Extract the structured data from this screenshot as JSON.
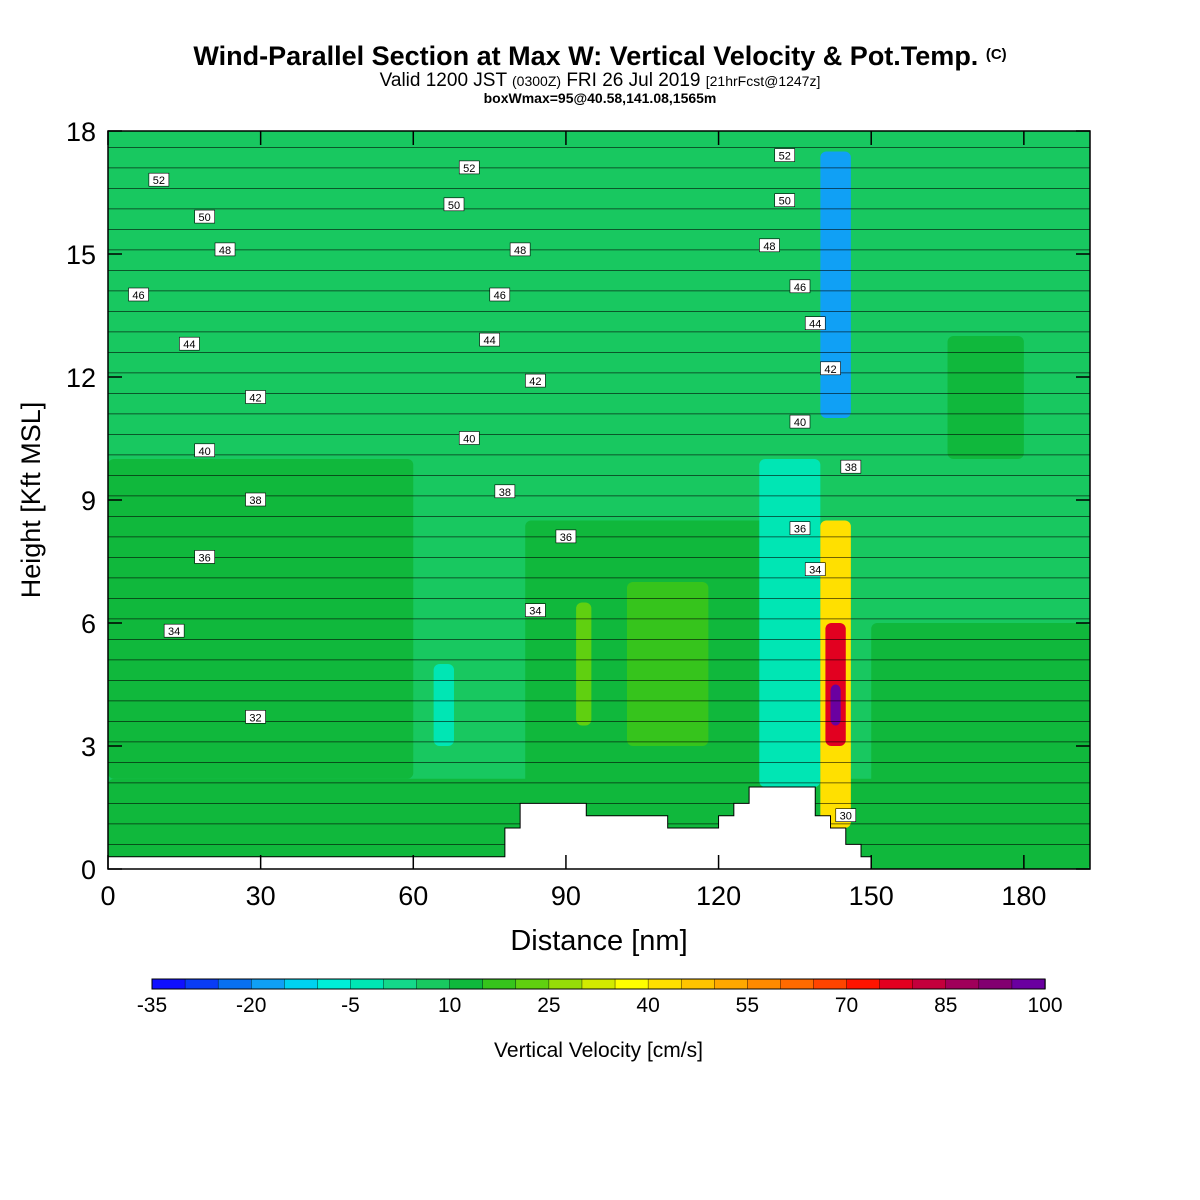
{
  "title": {
    "main": "Wind-Parallel Section at Max W: Vertical Velocity & Pot.Temp.",
    "main_mark": "(C)",
    "valid_prefix": "Valid 1200 JST",
    "valid_utc": "(0300Z)",
    "valid_date": "FRI 26 Jul 2019",
    "forecast": "[21hrFcst@1247z]",
    "box_info": "boxWmax=95@40.58,141.08,1565m"
  },
  "chart_data": {
    "type": "heatmap",
    "xlabel": "Distance [nm]",
    "ylabel": "Height [Kft MSL]",
    "xlim": [
      0,
      193
    ],
    "ylim": [
      0,
      18
    ],
    "x_ticks": [
      0,
      30,
      60,
      90,
      120,
      150,
      180
    ],
    "y_ticks": [
      0,
      3,
      6,
      9,
      12,
      15,
      18
    ],
    "colorbar": {
      "label": "Vertical Velocity [cm/s]",
      "tick_labels": [
        "-35",
        "-20",
        "-5",
        "10",
        "25",
        "40",
        "55",
        "70",
        "85",
        "100"
      ],
      "tick_values": [
        -35,
        -20,
        -5,
        10,
        25,
        40,
        55,
        70,
        85,
        100
      ],
      "min": -35,
      "max": 100,
      "step": 5,
      "colors": [
        "#1010ff",
        "#0a3cf5",
        "#0870f0",
        "#10a0f5",
        "#00d2f0",
        "#00eed8",
        "#00e6b4",
        "#14d88a",
        "#18c860",
        "#10b83c",
        "#36c41c",
        "#60d010",
        "#96dc08",
        "#d2ea00",
        "#ffff00",
        "#ffe000",
        "#ffc400",
        "#ffa800",
        "#ff8a00",
        "#ff6a00",
        "#ff4400",
        "#ff1400",
        "#e20020",
        "#c4003c",
        "#a0005a",
        "#820070",
        "#6a00a0"
      ]
    },
    "field_regions": [
      {
        "w": 12,
        "x0": 0,
        "x1": 193,
        "z0": 0,
        "z1": 2.2
      },
      {
        "w": 12,
        "x0": 0,
        "x1": 60,
        "z0": 2.2,
        "z1": 10
      },
      {
        "w": 12,
        "x0": 82,
        "x1": 135,
        "z0": 0.3,
        "z1": 8.5
      },
      {
        "w": 22,
        "x0": 92,
        "x1": 95,
        "z0": 3.5,
        "z1": 6.5
      },
      {
        "w": 18,
        "x0": 102,
        "x1": 118,
        "z0": 3,
        "z1": 7
      },
      {
        "w": 12,
        "x0": 150,
        "x1": 193,
        "z0": 0,
        "z1": 6
      },
      {
        "w": 12,
        "x0": 165,
        "x1": 180,
        "z0": 10,
        "z1": 13
      },
      {
        "w": -3,
        "x0": 128,
        "x1": 140,
        "z0": 2,
        "z1": 10
      },
      {
        "w": -2,
        "x0": 64,
        "x1": 68,
        "z0": 3,
        "z1": 5
      },
      {
        "w": -18,
        "x0": 140,
        "x1": 146,
        "z0": 11,
        "z1": 17.5
      },
      {
        "w": 40,
        "x0": 140,
        "x1": 146,
        "z0": 1,
        "z1": 8.5
      },
      {
        "w": 75,
        "x0": 141,
        "x1": 145,
        "z0": 3,
        "z1": 6
      },
      {
        "w": 95,
        "x0": 142,
        "x1": 144,
        "z0": 3.5,
        "z1": 4.5
      }
    ],
    "terrain": [
      [
        0,
        0.3
      ],
      [
        78,
        0.3
      ],
      [
        78,
        1.0
      ],
      [
        81,
        1.0
      ],
      [
        81,
        1.6
      ],
      [
        94,
        1.6
      ],
      [
        94,
        1.3
      ],
      [
        110,
        1.3
      ],
      [
        110,
        1.0
      ],
      [
        120,
        1.0
      ],
      [
        120,
        1.3
      ],
      [
        123,
        1.3
      ],
      [
        123,
        1.6
      ],
      [
        126,
        1.6
      ],
      [
        126,
        2.0
      ],
      [
        139,
        2.0
      ],
      [
        139,
        1.3
      ],
      [
        142,
        1.3
      ],
      [
        142,
        1.0
      ],
      [
        145,
        1.0
      ],
      [
        145,
        0.6
      ],
      [
        148,
        0.6
      ],
      [
        148,
        0.3
      ],
      [
        150,
        0.3
      ],
      [
        150,
        0
      ],
      [
        193,
        0
      ]
    ],
    "contour_labels": [
      {
        "text": "52",
        "x": 10,
        "z": 16.8
      },
      {
        "text": "50",
        "x": 19,
        "z": 15.9
      },
      {
        "text": "48",
        "x": 23,
        "z": 15.1
      },
      {
        "text": "46",
        "x": 6,
        "z": 14.0
      },
      {
        "text": "44",
        "x": 16,
        "z": 12.8
      },
      {
        "text": "42",
        "x": 29,
        "z": 11.5
      },
      {
        "text": "40",
        "x": 19,
        "z": 10.2
      },
      {
        "text": "38",
        "x": 29,
        "z": 9.0
      },
      {
        "text": "36",
        "x": 19,
        "z": 7.6
      },
      {
        "text": "34",
        "x": 13,
        "z": 5.8
      },
      {
        "text": "32",
        "x": 29,
        "z": 3.7
      },
      {
        "text": "52",
        "x": 71,
        "z": 17.1
      },
      {
        "text": "50",
        "x": 68,
        "z": 16.2
      },
      {
        "text": "48",
        "x": 81,
        "z": 15.1
      },
      {
        "text": "46",
        "x": 77,
        "z": 14.0
      },
      {
        "text": "44",
        "x": 75,
        "z": 12.9
      },
      {
        "text": "42",
        "x": 84,
        "z": 11.9
      },
      {
        "text": "40",
        "x": 71,
        "z": 10.5
      },
      {
        "text": "38",
        "x": 78,
        "z": 9.2
      },
      {
        "text": "36",
        "x": 90,
        "z": 8.1
      },
      {
        "text": "34",
        "x": 84,
        "z": 6.3
      },
      {
        "text": "52",
        "x": 133,
        "z": 17.4
      },
      {
        "text": "50",
        "x": 133,
        "z": 16.3
      },
      {
        "text": "48",
        "x": 130,
        "z": 15.2
      },
      {
        "text": "46",
        "x": 136,
        "z": 14.2
      },
      {
        "text": "44",
        "x": 139,
        "z": 13.3
      },
      {
        "text": "42",
        "x": 142,
        "z": 12.2
      },
      {
        "text": "40",
        "x": 136,
        "z": 10.9
      },
      {
        "text": "38",
        "x": 146,
        "z": 9.8
      },
      {
        "text": "36",
        "x": 136,
        "z": 8.3
      },
      {
        "text": "34",
        "x": 139,
        "z": 7.3
      },
      {
        "text": "30",
        "x": 145,
        "z": 1.3
      }
    ]
  }
}
